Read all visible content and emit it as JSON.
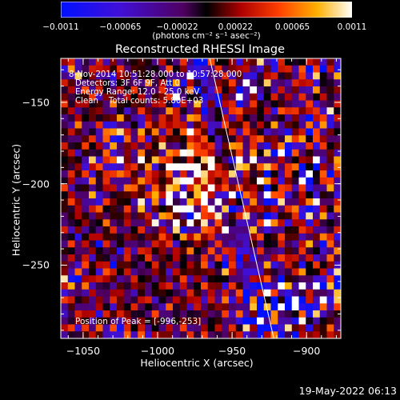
{
  "chart_data": {
    "type": "heatmap",
    "title": "Reconstructed RHESSI Image",
    "xlabel": "Heliocentric X (arcsec)",
    "ylabel": "Heliocentric Y (arcsec)",
    "xlim": [
      -1065,
      -877
    ],
    "ylim": [
      -295,
      -123
    ],
    "x_ticks": [
      {
        "value": -1050,
        "label": "−1050"
      },
      {
        "value": -1000,
        "label": "−1000"
      },
      {
        "value": -950,
        "label": "−950"
      },
      {
        "value": -900,
        "label": "−900"
      }
    ],
    "y_ticks": [
      {
        "value": -150,
        "label": "−150"
      },
      {
        "value": -200,
        "label": "−200"
      },
      {
        "value": -250,
        "label": "−250"
      }
    ],
    "colorbar": {
      "range": [
        -0.0011,
        0.0011
      ],
      "ticks": [
        {
          "value": -0.0011,
          "label": "−0.0011"
        },
        {
          "value": -0.00065,
          "label": "−0.00065"
        },
        {
          "value": -0.00022,
          "label": "−0.00022"
        },
        {
          "value": 0.00022,
          "label": "0.00022"
        },
        {
          "value": 0.00065,
          "label": "0.00065"
        },
        {
          "value": 0.0011,
          "label": "0.0011"
        }
      ],
      "unit_label": "(photons cm⁻² s⁻¹ asec⁻²)"
    },
    "annotations": [
      "8-Nov-2014 10:51:28.000 to 10:57:28.000",
      "Detectors: 3F 6F 9F, Att 0",
      "Energy Range: 12.0 - 25.0 keV",
      "Clean    Total counts: 5.80E+03"
    ],
    "peak_label": "Position of Peak = [-996,-253]",
    "peak": [
      -996,
      -253
    ],
    "limb_line": [
      [
        -965,
        -123
      ],
      [
        -922,
        -295
      ]
    ]
  },
  "footer": {
    "timestamp": "19-May-2022 06:13"
  }
}
